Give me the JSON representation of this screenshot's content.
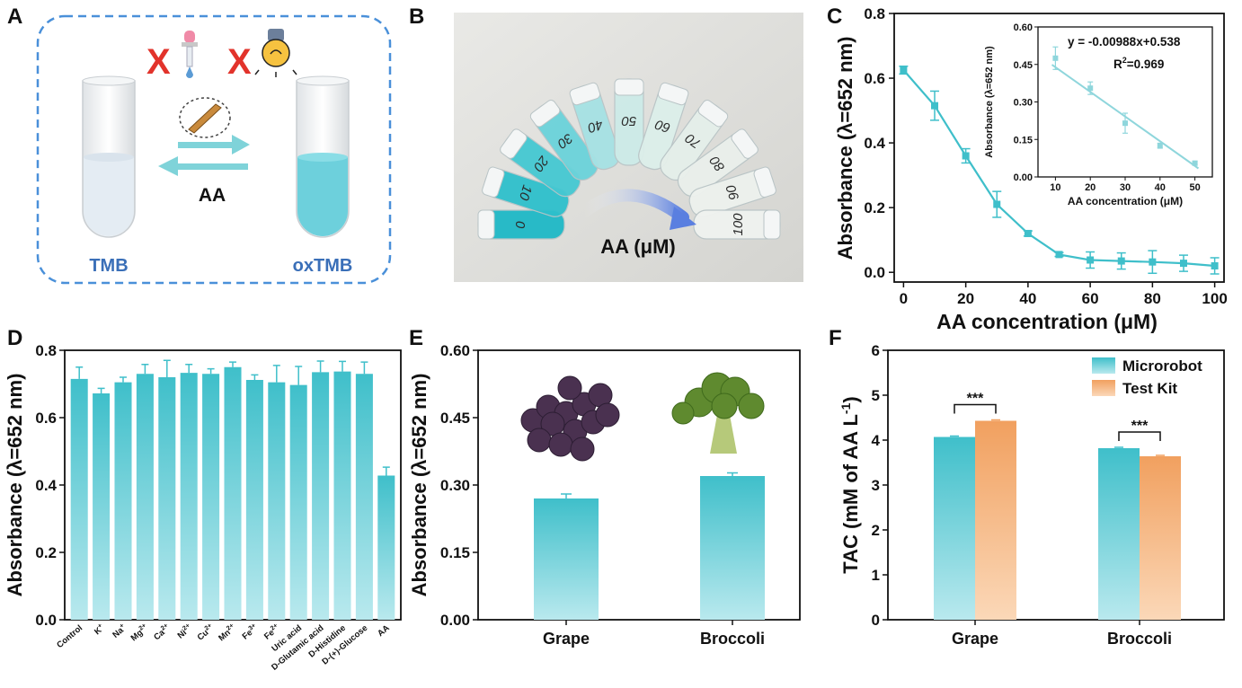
{
  "colors": {
    "teal": "#3fbfca",
    "teal_light": "#b9e9ee",
    "orange": "#f1a05f",
    "orange_light": "#fbd8b8",
    "dash": "#4a90d9",
    "text_blue": "#3a6fb8",
    "red_x": "#e2332b"
  },
  "panel_a": {
    "letter": "A",
    "left_tube_label": "TMB",
    "right_tube_label": "oxTMB",
    "arrow_label": "AA",
    "no_enzyme_mark": "X",
    "no_light_mark": "X",
    "icons": [
      "pipette-icon",
      "lightbulb-icon",
      "microrobot-icon"
    ]
  },
  "panel_b": {
    "letter": "B",
    "caption": "AA (μM)",
    "tube_labels": [
      "0",
      "10",
      "20",
      "30",
      "40",
      "50",
      "60",
      "70",
      "80",
      "90",
      "100"
    ]
  },
  "panel_c": {
    "letter": "C",
    "ylabel": "Absorbance (λ=652 nm)",
    "xlabel": "AA concentration (μM)",
    "xticks": [
      "0",
      "20",
      "40",
      "60",
      "80",
      "100"
    ],
    "yticks": [
      "0.0",
      "0.2",
      "0.4",
      "0.6",
      "0.8"
    ],
    "inset": {
      "ylabel": "Absorbance (λ=652 nm)",
      "xlabel": "AA concentration (μM)",
      "xticks": [
        "10",
        "20",
        "30",
        "40",
        "50"
      ],
      "yticks": [
        "0.00",
        "0.15",
        "0.30",
        "0.45",
        "0.60"
      ],
      "equation": "y = -0.00988x+0.538",
      "r2_prefix": "R",
      "r2_sup": "2",
      "r2_value": "=0.969"
    }
  },
  "panel_d": {
    "letter": "D",
    "ylabel": "Absorbance (λ=652 nm)",
    "yticks": [
      "0.0",
      "0.2",
      "0.4",
      "0.6",
      "0.8"
    ],
    "categories": [
      {
        "base": "Control",
        "sup": ""
      },
      {
        "base": "K",
        "sup": "+"
      },
      {
        "base": "Na",
        "sup": "+"
      },
      {
        "base": "Mg",
        "sup": "2+"
      },
      {
        "base": "Ca",
        "sup": "2+"
      },
      {
        "base": "Ni",
        "sup": "2+"
      },
      {
        "base": "Cu",
        "sup": "2+"
      },
      {
        "base": "Mn",
        "sup": "2+"
      },
      {
        "base": "Fe",
        "sup": "3+"
      },
      {
        "base": "Fe",
        "sup": "2+"
      },
      {
        "base": "Uric acid",
        "sup": ""
      },
      {
        "base": "D-Glutamic acid",
        "sup": ""
      },
      {
        "base": "D-Histidine",
        "sup": ""
      },
      {
        "base": "D-(+)-Glucose",
        "sup": ""
      },
      {
        "base": "AA",
        "sup": ""
      }
    ]
  },
  "panel_e": {
    "letter": "E",
    "ylabel": "Absorbance (λ=652 nm)",
    "yticks": [
      "0.00",
      "0.15",
      "0.30",
      "0.45",
      "0.60"
    ],
    "icons": [
      "grape-icon",
      "broccoli-icon"
    ]
  },
  "panel_f": {
    "letter": "F",
    "ylabel_main": "TAC (mM of AA L",
    "ylabel_sup": "-1",
    "ylabel_end": ")",
    "yticks": [
      "0",
      "1",
      "2",
      "3",
      "4",
      "5",
      "6"
    ],
    "significance": [
      "***",
      "***"
    ]
  },
  "chart_data": [
    {
      "id": "C",
      "type": "line",
      "title": "",
      "xlabel": "AA concentration (μM)",
      "ylabel": "Absorbance (λ=652 nm)",
      "xlim": [
        -3,
        103
      ],
      "ylim": [
        -0.03,
        0.8
      ],
      "x": [
        0,
        10,
        20,
        30,
        40,
        50,
        60,
        70,
        80,
        90,
        100
      ],
      "series": [
        {
          "name": "Absorbance",
          "values": [
            0.625,
            0.515,
            0.36,
            0.21,
            0.12,
            0.055,
            0.038,
            0.035,
            0.032,
            0.028,
            0.02
          ],
          "errors": [
            0.012,
            0.045,
            0.022,
            0.04,
            0.008,
            0.006,
            0.025,
            0.025,
            0.035,
            0.025,
            0.025
          ]
        }
      ]
    },
    {
      "id": "C-inset",
      "type": "scatter",
      "xlabel": "AA concentration (μM)",
      "ylabel": "Absorbance (λ=652 nm)",
      "xlim": [
        5,
        55
      ],
      "ylim": [
        0,
        0.6
      ],
      "x": [
        10,
        20,
        30,
        40,
        50
      ],
      "series": [
        {
          "name": "data",
          "values": [
            0.475,
            0.355,
            0.215,
            0.125,
            0.055
          ],
          "errors": [
            0.045,
            0.025,
            0.04,
            0.01,
            0.008
          ]
        }
      ],
      "fit": {
        "slope": -0.00988,
        "intercept": 0.538,
        "r2": 0.969
      }
    },
    {
      "id": "D",
      "type": "bar",
      "ylabel": "Absorbance (λ=652 nm)",
      "ylim": [
        0,
        0.8
      ],
      "categories": [
        "Control",
        "K+",
        "Na+",
        "Mg2+",
        "Ca2+",
        "Ni2+",
        "Cu2+",
        "Mn2+",
        "Fe3+",
        "Fe2+",
        "Uric acid",
        "D-Glutamic acid",
        "D-Histidine",
        "D-(+)-Glucose",
        "AA"
      ],
      "values": [
        0.715,
        0.672,
        0.705,
        0.73,
        0.72,
        0.733,
        0.73,
        0.75,
        0.712,
        0.705,
        0.697,
        0.735,
        0.737,
        0.73,
        0.428
      ],
      "errors": [
        0.035,
        0.015,
        0.015,
        0.028,
        0.05,
        0.025,
        0.015,
        0.015,
        0.015,
        0.05,
        0.055,
        0.033,
        0.03,
        0.035,
        0.025
      ]
    },
    {
      "id": "E",
      "type": "bar",
      "ylabel": "Absorbance (λ=652 nm)",
      "ylim": [
        0,
        0.6
      ],
      "categories": [
        "Grape",
        "Broccoli"
      ],
      "values": [
        0.27,
        0.32
      ],
      "errors": [
        0.01,
        0.007
      ]
    },
    {
      "id": "F",
      "type": "bar",
      "ylabel": "TAC (mM of AA L-1)",
      "ylim": [
        0,
        6
      ],
      "categories": [
        "Grape",
        "Broccoli"
      ],
      "series": [
        {
          "name": "Microrobot",
          "values": [
            4.07,
            3.82
          ],
          "errors": [
            0.02,
            0.02
          ]
        },
        {
          "name": "Test Kit",
          "values": [
            4.43,
            3.64
          ],
          "errors": [
            0.02,
            0.02
          ]
        }
      ],
      "legend": "top-right"
    }
  ]
}
